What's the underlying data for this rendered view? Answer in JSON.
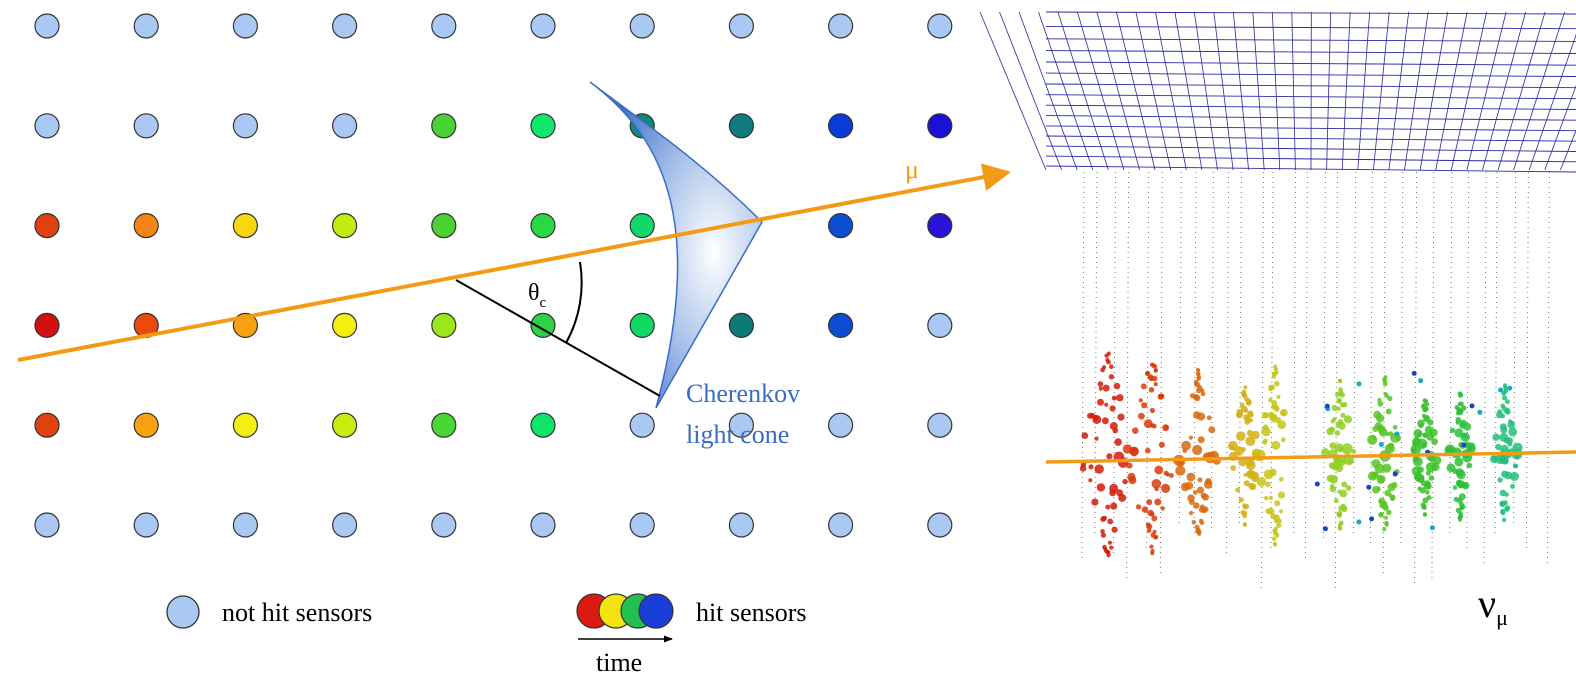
{
  "labels": {
    "muon": "μ",
    "theta": "θ",
    "theta_sub": "c",
    "cone_line1": "Cherenkov",
    "cone_line2": "light cone",
    "legend_not_hit": "not hit sensors",
    "legend_hit": "hit sensors",
    "legend_time": "time",
    "neutrino": "ν",
    "neutrino_sub": "μ"
  },
  "colors": {
    "not_hit": "#aac8f4",
    "track": "#f39b17",
    "cone": "#3a6cc6",
    "grid": "#2a2aa0",
    "legend_hit": [
      "#dd1a10",
      "#f4e410",
      "#22c050",
      "#1c3ed8"
    ]
  },
  "sensor_grid": {
    "rows": 6,
    "cols": 10,
    "hits": [
      [
        "-",
        "-",
        "-",
        "-",
        "-",
        "-",
        "-",
        "-",
        "-",
        "-"
      ],
      [
        "-",
        "-",
        "-",
        "-",
        "#4ad233",
        "#10e86c",
        "#0f8a78",
        "#0f7a80",
        "#0a3bd8",
        "#1a10d8"
      ],
      [
        "#e0420f",
        "#f78515",
        "#f8d610",
        "#c2ec12",
        "#4ad233",
        "#29d845",
        "#10d86a",
        "#0f8a76",
        "#0b4fd2",
        "#2a13d8"
      ],
      [
        "#d21010",
        "#ea4a0e",
        "#f6a212",
        "#f4ee12",
        "#9ae81a",
        "#2ed242",
        "#10d863",
        "#0d7a78",
        "#0c4cd0",
        "-"
      ],
      [
        "#e0420f",
        "#f7a20e",
        "#f4ee12",
        "#c6ec12",
        "#48d833",
        "#10e467",
        "-",
        "-",
        "-",
        "-"
      ],
      [
        "-",
        "-",
        "-",
        "-",
        "-",
        "-",
        "-",
        "-",
        "-",
        "-"
      ]
    ]
  }
}
